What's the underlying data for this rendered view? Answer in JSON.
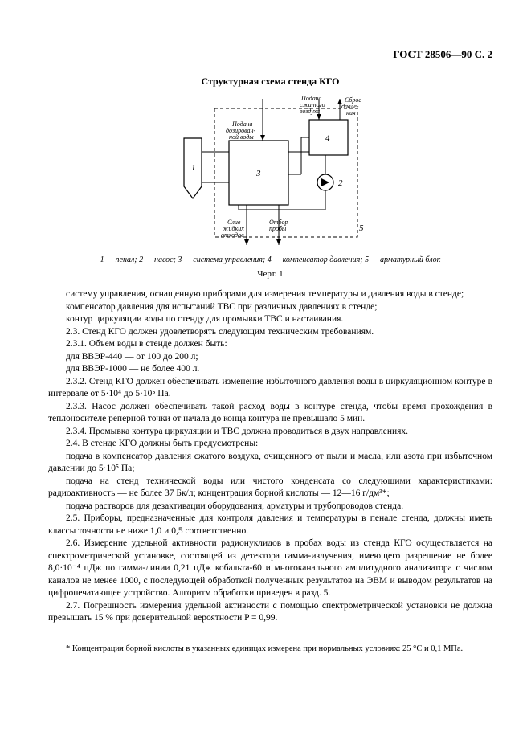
{
  "header": "ГОСТ 28506—90 С. 2",
  "figure": {
    "title": "Структурная схема стенда КГО",
    "labels": {
      "air_top": "Подача сжатого воздуха",
      "discharge_top": "Сброс давления",
      "dozed_water": "Подача дозирован-ной воды",
      "waste_bottom": "Слив жидких отходов",
      "sample_bottom": "Отбор пробы"
    },
    "box_ids": {
      "b1": "1",
      "b2": "2",
      "b3": "3",
      "b4": "4",
      "b5": "5"
    },
    "legend": "1 — пенал; 2 — насос; 3 — система управления; 4 — компенсатор давления; 5 — арматурный блок",
    "fignum": "Черт. 1"
  },
  "paragraphs": [
    "систему управления, оснащенную приборами для измерения температуры и давления воды в стенде;",
    "компенсатор давления для испытаний ТВС при различных давлениях в стенде;",
    "контур циркуляции воды по стенду для промывки ТВС и настаивания.",
    "2.3. Стенд КГО должен удовлетворять следующим техническим требованиям.",
    "2.3.1. Объем воды в стенде должен быть:",
    "для ВВЭР-440 — от 100 до 200 л;",
    "для ВВЭР-1000 — не более 400 л.",
    "2.3.2. Стенд КГО должен обеспечивать изменение избыточного давления воды в циркуляционном контуре в интервале от 5·10⁴ до 5·10⁵ Па.",
    "2.3.3. Насос должен обеспечивать такой расход воды в контуре стенда, чтобы время прохождения в теплоносителе реперной точки от начала до конца контура не превышало 5 мин.",
    "2.3.4. Промывка контура циркуляции и ТВС должна проводиться в двух направлениях.",
    "2.4. В стенде КГО должны быть предусмотрены:",
    "подача в компенсатор давления сжатого воздуха, очищенного от пыли и масла, или азота при избыточном давлении до 5·10⁵ Па;",
    "подача на стенд технической воды или чистого конденсата со следующими характеристиками: радиоактивность — не более 37 Бк/л; концентрация борной кислоты — 12—16 г/дм³*;",
    "подача растворов для дезактивации оборудования, арматуры и трубопроводов стенда.",
    "2.5. Приборы, предназначенные для контроля давления и температуры в пенале стенда, должны иметь классы точности не ниже 1,0 и 0,5 соответственно.",
    "2.6. Измерение удельной активности радионуклидов в пробах воды из стенда КГО осуществляется на спектрометрической установке, состоящей из детектора гамма-излучения, имеющего разрешение не более 8,0·10⁻⁴ пДж по гамма-линии 0,21 пДж кобальта-60 и многоканального амплитудного анализатора с числом каналов не менее 1000, с последующей обработкой полученных результатов на ЭВМ и выводом результатов на цифропечатающее устройство. Алгоритм обработки приведен в разд. 5.",
    "2.7. Погрешность измерения удельной активности с помощью спектрометрической установки не должна превышать 15 % при доверительной вероятности P = 0,99."
  ],
  "footnote": "* Концентрация борной кислоты в указанных единицах измерена при нормальных условиях: 25 °C и 0,1 МПа."
}
